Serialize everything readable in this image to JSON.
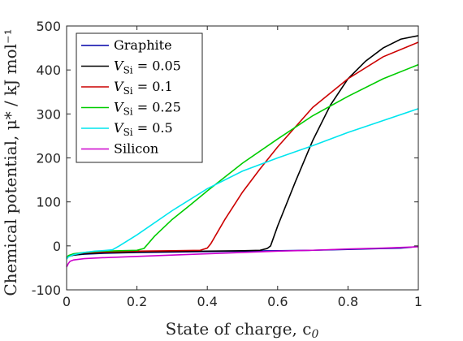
{
  "chart_data": {
    "type": "line",
    "xlabel": "State of charge, c",
    "xlabel_subscript": "0",
    "ylabel": "Chemical potential, μ* / kJ mol⁻¹",
    "xlim": [
      0,
      1
    ],
    "ylim": [
      -100,
      500
    ],
    "xticks": [
      "0",
      "0.2",
      "0.4",
      "0.6",
      "0.8",
      "1"
    ],
    "yticks": [
      "500",
      "400",
      "300",
      "200",
      "100",
      "0",
      "-100"
    ],
    "grid": false,
    "legend_position": "top-left",
    "series": [
      {
        "name": "Graphite",
        "color": "#0000a8",
        "x": [
          0,
          0.005,
          0.02,
          0.05,
          0.1,
          0.2,
          0.3,
          0.4,
          0.5,
          0.6,
          0.7,
          0.8,
          0.9,
          0.95,
          0.98,
          1.0
        ],
        "y": [
          -28,
          -24,
          -21,
          -19,
          -17,
          -15,
          -14,
          -13,
          -12,
          -11,
          -10,
          -8,
          -6,
          -5,
          -3,
          -1
        ]
      },
      {
        "name": "V_Si = 0.05",
        "label_var": "V",
        "label_sub": "Si",
        "label_value": " = 0.05",
        "color": "#000000",
        "x": [
          0,
          0.005,
          0.02,
          0.05,
          0.1,
          0.2,
          0.3,
          0.4,
          0.5,
          0.55,
          0.57,
          0.58,
          0.6,
          0.65,
          0.7,
          0.75,
          0.8,
          0.85,
          0.9,
          0.95,
          1.0
        ],
        "y": [
          -28,
          -24,
          -21,
          -18,
          -16,
          -14,
          -13,
          -12,
          -11,
          -10,
          -6,
          0,
          45,
          145,
          240,
          320,
          380,
          420,
          450,
          470,
          478
        ]
      },
      {
        "name": "V_Si = 0.1",
        "label_var": "V",
        "label_sub": "Si",
        "label_value": " = 0.1",
        "color": "#cc0000",
        "x": [
          0,
          0.005,
          0.02,
          0.05,
          0.1,
          0.2,
          0.3,
          0.38,
          0.4,
          0.41,
          0.45,
          0.5,
          0.55,
          0.6,
          0.7,
          0.8,
          0.9,
          1.0
        ],
        "y": [
          -28,
          -23,
          -19,
          -16,
          -14,
          -12,
          -11,
          -10,
          -5,
          5,
          60,
          122,
          175,
          225,
          315,
          380,
          430,
          463
        ]
      },
      {
        "name": "V_Si = 0.25",
        "label_var": "V",
        "label_sub": "Si",
        "label_value": " = 0.25",
        "color": "#00cc00",
        "x": [
          0,
          0.005,
          0.02,
          0.05,
          0.1,
          0.15,
          0.2,
          0.22,
          0.25,
          0.3,
          0.35,
          0.4,
          0.5,
          0.6,
          0.7,
          0.8,
          0.9,
          1.0
        ],
        "y": [
          -28,
          -22,
          -18,
          -15,
          -12,
          -11,
          -10,
          -6,
          22,
          60,
          92,
          125,
          188,
          243,
          296,
          340,
          380,
          412
        ]
      },
      {
        "name": "V_Si = 0.5",
        "label_var": "V",
        "label_sub": "Si",
        "label_value": " = 0.5",
        "color": "#00e5ee",
        "x": [
          0,
          0.005,
          0.02,
          0.05,
          0.08,
          0.1,
          0.13,
          0.15,
          0.2,
          0.3,
          0.4,
          0.5,
          0.6,
          0.7,
          0.8,
          0.9,
          1.0
        ],
        "y": [
          -30,
          -25,
          -20,
          -15,
          -12,
          -11,
          -9,
          0,
          25,
          80,
          130,
          170,
          200,
          228,
          258,
          285,
          312
        ]
      },
      {
        "name": "Silicon",
        "color": "#cc00cc",
        "x": [
          0,
          0.005,
          0.01,
          0.02,
          0.05,
          0.1,
          0.2,
          0.3,
          0.4,
          0.5,
          0.6,
          0.7,
          0.8,
          0.9,
          1.0
        ],
        "y": [
          -48,
          -40,
          -35,
          -32,
          -29,
          -27,
          -24,
          -21,
          -18,
          -15,
          -12,
          -10,
          -7,
          -5,
          -2
        ]
      }
    ]
  }
}
